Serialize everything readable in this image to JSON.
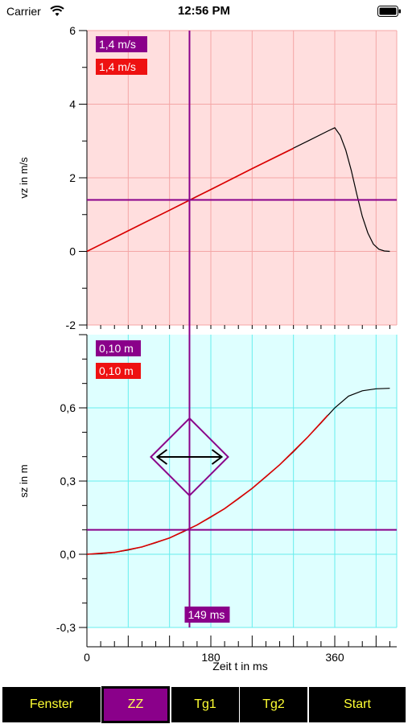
{
  "statusbar": {
    "carrier": "Carrier",
    "time": "12:56 PM"
  },
  "colors": {
    "top_bg": "#ffdede",
    "bottom_bg": "#deffff",
    "top_grid": "#f4a6a6",
    "bottom_grid": "#66eeee",
    "cursor": "#8a008a",
    "measured": "#000000",
    "fit": "#dd0000",
    "label_red": "#ee1111",
    "button_bg": "#000000",
    "button_text": "#ffff33"
  },
  "readouts": {
    "top_purple": "1,4 m/s",
    "top_red": "1,4 m/s",
    "bottom_purple": "0,10 m",
    "bottom_red": "0,10 m",
    "time": "149 ms"
  },
  "chart_data": [
    {
      "type": "line",
      "ylabel": "vz in m/s",
      "ylim": [
        -2,
        6
      ],
      "xlim": [
        0,
        450
      ],
      "ytick_labels": [
        "6",
        "4",
        "2",
        "0",
        "-2"
      ],
      "yticks": [
        6,
        4,
        2,
        0,
        -2
      ],
      "grid": true,
      "cursor": {
        "x": 149,
        "y": 1.4
      },
      "series": [
        {
          "x": [
            0,
            40,
            80,
            120,
            160,
            200,
            240,
            280,
            320,
            350,
            360,
            368,
            376,
            384,
            392,
            400,
            408,
            416,
            424,
            432,
            440
          ],
          "y": [
            0,
            0.37,
            0.75,
            1.12,
            1.5,
            1.87,
            2.25,
            2.62,
            2.99,
            3.27,
            3.36,
            3.15,
            2.75,
            2.2,
            1.55,
            0.95,
            0.5,
            0.2,
            0.06,
            0.01,
            0
          ]
        },
        {
          "x": [
            0,
            60,
            120,
            180,
            240,
            300
          ],
          "y": [
            0,
            0.56,
            1.12,
            1.68,
            2.25,
            2.8
          ]
        }
      ]
    },
    {
      "type": "line",
      "ylabel": "sz in m",
      "xlabel": "Zeit t in ms",
      "ylim": [
        -0.3,
        0.9
      ],
      "xlim": [
        0,
        450
      ],
      "ytick_labels": [
        "0,6",
        "0,3",
        "0,0",
        "-0,3"
      ],
      "yticks": [
        0.6,
        0.3,
        0.0,
        -0.3
      ],
      "xtick_labels": [
        "0",
        "180",
        "360"
      ],
      "xticks": [
        0,
        180,
        360
      ],
      "grid": true,
      "cursor": {
        "x": 149,
        "y": 0.1
      },
      "series": [
        {
          "x": [
            0,
            20,
            40,
            60,
            80,
            100,
            120,
            140,
            160,
            180,
            200,
            220,
            240,
            260,
            280,
            300,
            320,
            340,
            360,
            380,
            400,
            420,
            440
          ],
          "y": [
            0,
            0.002,
            0.008,
            0.017,
            0.03,
            0.047,
            0.067,
            0.092,
            0.12,
            0.152,
            0.187,
            0.227,
            0.27,
            0.317,
            0.367,
            0.42,
            0.478,
            0.538,
            0.6,
            0.648,
            0.67,
            0.678,
            0.68
          ]
        },
        {
          "x": [
            0,
            40,
            80,
            120,
            160,
            200,
            240,
            280,
            320,
            350
          ],
          "y": [
            0,
            0.008,
            0.03,
            0.067,
            0.12,
            0.187,
            0.27,
            0.367,
            0.478,
            0.57
          ]
        }
      ]
    }
  ],
  "toolbar": {
    "buttons": [
      {
        "label": "Fenster",
        "active": false
      },
      {
        "label": "ZZ",
        "active": true
      },
      {
        "label": "Tg1",
        "active": false
      },
      {
        "label": "Tg2",
        "active": false
      },
      {
        "label": "Start",
        "active": false
      }
    ]
  }
}
